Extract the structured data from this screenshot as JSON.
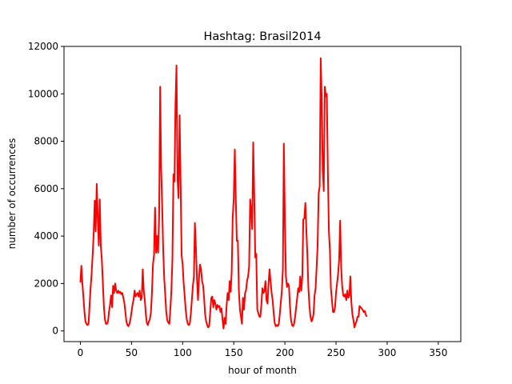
{
  "chart_data": {
    "type": "line",
    "title": "Hashtag: Brasil2014",
    "xlabel": "hour of month",
    "ylabel": "number of occurrences",
    "xlim": [
      -16,
      372
    ],
    "ylim": [
      -450,
      12000
    ],
    "xticks": [
      0,
      50,
      100,
      150,
      200,
      250,
      300,
      350
    ],
    "yticks": [
      0,
      2000,
      4000,
      6000,
      8000,
      10000,
      12000
    ],
    "grid": false,
    "legend": "none",
    "series": [
      {
        "color": "#ff0000",
        "points": [
          [
            0,
            2050
          ],
          [
            1,
            2750
          ],
          [
            2,
            2000
          ],
          [
            3,
            1400
          ],
          [
            4,
            800
          ],
          [
            5,
            400
          ],
          [
            6,
            300
          ],
          [
            7,
            250
          ],
          [
            8,
            300
          ],
          [
            9,
            1100
          ],
          [
            10,
            1800
          ],
          [
            11,
            2400
          ],
          [
            12,
            3200
          ],
          [
            13,
            4100
          ],
          [
            14,
            5500
          ],
          [
            15,
            4200
          ],
          [
            16,
            6200
          ],
          [
            17,
            4800
          ],
          [
            18,
            3600
          ],
          [
            19,
            5550
          ],
          [
            20,
            3600
          ],
          [
            21,
            3000
          ],
          [
            22,
            2000
          ],
          [
            23,
            1000
          ],
          [
            24,
            500
          ],
          [
            25,
            300
          ],
          [
            26,
            300
          ],
          [
            27,
            400
          ],
          [
            28,
            800
          ],
          [
            29,
            1100
          ],
          [
            30,
            1500
          ],
          [
            31,
            1000
          ],
          [
            32,
            1900
          ],
          [
            33,
            1600
          ],
          [
            34,
            2000
          ],
          [
            35,
            1700
          ],
          [
            36,
            1600
          ],
          [
            37,
            1700
          ],
          [
            38,
            1600
          ],
          [
            39,
            1650
          ],
          [
            40,
            1550
          ],
          [
            41,
            1600
          ],
          [
            42,
            1400
          ],
          [
            43,
            1200
          ],
          [
            44,
            800
          ],
          [
            45,
            400
          ],
          [
            46,
            250
          ],
          [
            47,
            200
          ],
          [
            48,
            300
          ],
          [
            49,
            500
          ],
          [
            50,
            800
          ],
          [
            51,
            1100
          ],
          [
            52,
            1300
          ],
          [
            53,
            1700
          ],
          [
            54,
            1450
          ],
          [
            55,
            1550
          ],
          [
            56,
            1600
          ],
          [
            57,
            1450
          ],
          [
            58,
            1700
          ],
          [
            59,
            1300
          ],
          [
            60,
            1400
          ],
          [
            61,
            2600
          ],
          [
            62,
            1700
          ],
          [
            63,
            1300
          ],
          [
            64,
            700
          ],
          [
            65,
            350
          ],
          [
            66,
            250
          ],
          [
            67,
            400
          ],
          [
            68,
            500
          ],
          [
            69,
            800
          ],
          [
            70,
            1600
          ],
          [
            71,
            2800
          ],
          [
            72,
            3200
          ],
          [
            73,
            5200
          ],
          [
            74,
            3300
          ],
          [
            75,
            4000
          ],
          [
            76,
            3300
          ],
          [
            77,
            4800
          ],
          [
            78,
            10300
          ],
          [
            79,
            6900
          ],
          [
            80,
            5300
          ],
          [
            81,
            3400
          ],
          [
            82,
            2200
          ],
          [
            83,
            1500
          ],
          [
            84,
            800
          ],
          [
            85,
            450
          ],
          [
            86,
            350
          ],
          [
            87,
            300
          ],
          [
            88,
            900
          ],
          [
            89,
            1700
          ],
          [
            90,
            3000
          ],
          [
            91,
            6600
          ],
          [
            92,
            6300
          ],
          [
            93,
            9500
          ],
          [
            94,
            11200
          ],
          [
            95,
            6400
          ],
          [
            96,
            5600
          ],
          [
            97,
            9100
          ],
          [
            98,
            6400
          ],
          [
            99,
            3200
          ],
          [
            100,
            2800
          ],
          [
            101,
            2000
          ],
          [
            102,
            1500
          ],
          [
            103,
            900
          ],
          [
            104,
            500
          ],
          [
            105,
            300
          ],
          [
            106,
            250
          ],
          [
            107,
            300
          ],
          [
            108,
            700
          ],
          [
            109,
            1300
          ],
          [
            110,
            1900
          ],
          [
            111,
            2300
          ],
          [
            112,
            4550
          ],
          [
            113,
            3500
          ],
          [
            114,
            2200
          ],
          [
            115,
            1300
          ],
          [
            116,
            2200
          ],
          [
            117,
            2800
          ],
          [
            118,
            2600
          ],
          [
            119,
            2100
          ],
          [
            120,
            1900
          ],
          [
            121,
            1400
          ],
          [
            122,
            700
          ],
          [
            123,
            400
          ],
          [
            124,
            250
          ],
          [
            125,
            150
          ],
          [
            126,
            200
          ],
          [
            127,
            800
          ],
          [
            128,
            1400
          ],
          [
            129,
            1450
          ],
          [
            130,
            1000
          ],
          [
            131,
            1300
          ],
          [
            132,
            1150
          ],
          [
            133,
            900
          ],
          [
            134,
            1100
          ],
          [
            135,
            1000
          ],
          [
            136,
            1050
          ],
          [
            137,
            800
          ],
          [
            138,
            950
          ],
          [
            139,
            500
          ],
          [
            140,
            100
          ],
          [
            141,
            550
          ],
          [
            142,
            300
          ],
          [
            143,
            1100
          ],
          [
            144,
            1600
          ],
          [
            145,
            1300
          ],
          [
            146,
            2100
          ],
          [
            147,
            1650
          ],
          [
            148,
            2500
          ],
          [
            149,
            4800
          ],
          [
            150,
            5600
          ],
          [
            151,
            7650
          ],
          [
            152,
            5500
          ],
          [
            153,
            3800
          ],
          [
            154,
            3800
          ],
          [
            155,
            1700
          ],
          [
            156,
            900
          ],
          [
            157,
            600
          ],
          [
            158,
            300
          ],
          [
            159,
            1400
          ],
          [
            160,
            900
          ],
          [
            161,
            1600
          ],
          [
            162,
            1700
          ],
          [
            163,
            2100
          ],
          [
            164,
            2300
          ],
          [
            165,
            2700
          ],
          [
            166,
            5550
          ],
          [
            167,
            5100
          ],
          [
            168,
            4300
          ],
          [
            169,
            7950
          ],
          [
            170,
            5700
          ],
          [
            171,
            3100
          ],
          [
            172,
            3250
          ],
          [
            173,
            900
          ],
          [
            174,
            750
          ],
          [
            175,
            600
          ],
          [
            176,
            600
          ],
          [
            177,
            1100
          ],
          [
            178,
            1800
          ],
          [
            179,
            1600
          ],
          [
            180,
            1700
          ],
          [
            181,
            2100
          ],
          [
            182,
            1300
          ],
          [
            183,
            1150
          ],
          [
            184,
            2000
          ],
          [
            185,
            2600
          ],
          [
            186,
            2100
          ],
          [
            187,
            1600
          ],
          [
            188,
            1300
          ],
          [
            189,
            750
          ],
          [
            190,
            350
          ],
          [
            191,
            200
          ],
          [
            192,
            250
          ],
          [
            193,
            200
          ],
          [
            194,
            300
          ],
          [
            195,
            700
          ],
          [
            196,
            1200
          ],
          [
            197,
            1700
          ],
          [
            198,
            2600
          ],
          [
            199,
            7900
          ],
          [
            200,
            4700
          ],
          [
            201,
            2300
          ],
          [
            202,
            1850
          ],
          [
            203,
            2000
          ],
          [
            204,
            1900
          ],
          [
            205,
            1000
          ],
          [
            206,
            450
          ],
          [
            207,
            250
          ],
          [
            208,
            200
          ],
          [
            209,
            300
          ],
          [
            210,
            600
          ],
          [
            211,
            1000
          ],
          [
            212,
            1400
          ],
          [
            213,
            1800
          ],
          [
            214,
            1650
          ],
          [
            215,
            2300
          ],
          [
            216,
            1700
          ],
          [
            217,
            2300
          ],
          [
            218,
            4700
          ],
          [
            219,
            4750
          ],
          [
            220,
            5400
          ],
          [
            221,
            4200
          ],
          [
            222,
            3200
          ],
          [
            223,
            1800
          ],
          [
            224,
            1050
          ],
          [
            225,
            600
          ],
          [
            226,
            400
          ],
          [
            227,
            500
          ],
          [
            228,
            700
          ],
          [
            229,
            1500
          ],
          [
            230,
            1800
          ],
          [
            231,
            2700
          ],
          [
            232,
            3600
          ],
          [
            233,
            5800
          ],
          [
            234,
            6100
          ],
          [
            235,
            11500
          ],
          [
            236,
            9800
          ],
          [
            237,
            6800
          ],
          [
            238,
            5900
          ],
          [
            239,
            10300
          ],
          [
            240,
            9900
          ],
          [
            241,
            10000
          ],
          [
            242,
            6800
          ],
          [
            243,
            4200
          ],
          [
            244,
            3400
          ],
          [
            245,
            1800
          ],
          [
            246,
            1300
          ],
          [
            247,
            800
          ],
          [
            248,
            800
          ],
          [
            249,
            1000
          ],
          [
            250,
            1600
          ],
          [
            251,
            2000
          ],
          [
            252,
            2400
          ],
          [
            253,
            3000
          ],
          [
            254,
            4650
          ],
          [
            255,
            2700
          ],
          [
            256,
            1900
          ],
          [
            257,
            1500
          ],
          [
            258,
            1450
          ],
          [
            259,
            1550
          ],
          [
            260,
            1300
          ],
          [
            261,
            1700
          ],
          [
            262,
            1400
          ],
          [
            263,
            1500
          ],
          [
            264,
            2300
          ],
          [
            265,
            1200
          ],
          [
            266,
            700
          ],
          [
            267,
            450
          ],
          [
            268,
            150
          ],
          [
            269,
            300
          ],
          [
            270,
            400
          ],
          [
            271,
            600
          ],
          [
            272,
            600
          ],
          [
            273,
            1050
          ],
          [
            274,
            1000
          ],
          [
            275,
            950
          ],
          [
            276,
            900
          ],
          [
            277,
            800
          ],
          [
            278,
            850
          ],
          [
            279,
            700
          ],
          [
            280,
            600
          ]
        ]
      }
    ]
  }
}
